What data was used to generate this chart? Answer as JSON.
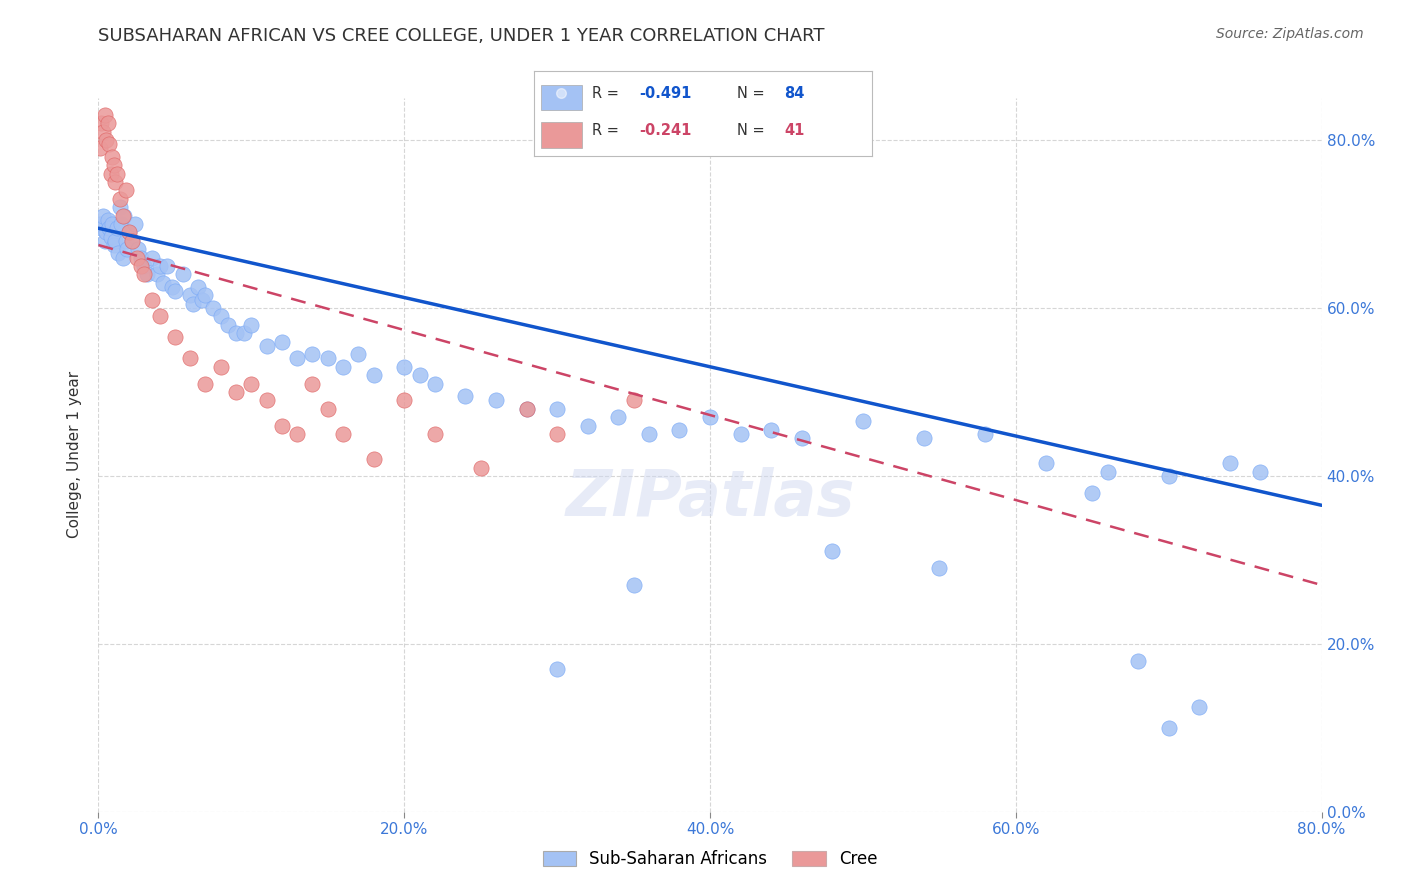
{
  "title": "SUBSAHARAN AFRICAN VS CREE COLLEGE, UNDER 1 YEAR CORRELATION CHART",
  "source": "Source: ZipAtlas.com",
  "ylabel_label": "College, Under 1 year",
  "blue_color": "#a4c2f4",
  "pink_color": "#ea9999",
  "blue_line_color": "#1155cc",
  "pink_line_color": "#cc4466",
  "R_blue": -0.491,
  "N_blue": 84,
  "R_pink": -0.241,
  "N_pink": 41,
  "xlim": [
    0.0,
    0.8
  ],
  "ylim": [
    0.0,
    0.85
  ],
  "blue_trend_x": [
    0.0,
    0.8
  ],
  "blue_trend_y": [
    0.695,
    0.365
  ],
  "pink_trend_x": [
    0.0,
    0.8
  ],
  "pink_trend_y": [
    0.675,
    0.27
  ],
  "blue_scatter_x": [
    0.001,
    0.002,
    0.003,
    0.004,
    0.005,
    0.006,
    0.007,
    0.008,
    0.009,
    0.01,
    0.011,
    0.012,
    0.013,
    0.014,
    0.015,
    0.016,
    0.017,
    0.018,
    0.019,
    0.02,
    0.022,
    0.024,
    0.026,
    0.028,
    0.03,
    0.032,
    0.035,
    0.038,
    0.04,
    0.042,
    0.045,
    0.048,
    0.05,
    0.055,
    0.06,
    0.062,
    0.065,
    0.068,
    0.07,
    0.075,
    0.08,
    0.085,
    0.09,
    0.095,
    0.1,
    0.11,
    0.12,
    0.13,
    0.14,
    0.15,
    0.16,
    0.17,
    0.18,
    0.2,
    0.21,
    0.22,
    0.24,
    0.26,
    0.28,
    0.3,
    0.32,
    0.34,
    0.36,
    0.38,
    0.4,
    0.42,
    0.44,
    0.46,
    0.5,
    0.54,
    0.58,
    0.62,
    0.66,
    0.7,
    0.74,
    0.76,
    0.65,
    0.7,
    0.72,
    0.68,
    0.55,
    0.48,
    0.35,
    0.3
  ],
  "blue_scatter_y": [
    0.7,
    0.695,
    0.71,
    0.68,
    0.69,
    0.705,
    0.695,
    0.685,
    0.7,
    0.675,
    0.68,
    0.695,
    0.665,
    0.72,
    0.7,
    0.66,
    0.71,
    0.68,
    0.67,
    0.69,
    0.68,
    0.7,
    0.67,
    0.66,
    0.65,
    0.64,
    0.66,
    0.64,
    0.65,
    0.63,
    0.65,
    0.625,
    0.62,
    0.64,
    0.615,
    0.605,
    0.625,
    0.61,
    0.615,
    0.6,
    0.59,
    0.58,
    0.57,
    0.57,
    0.58,
    0.555,
    0.56,
    0.54,
    0.545,
    0.54,
    0.53,
    0.545,
    0.52,
    0.53,
    0.52,
    0.51,
    0.495,
    0.49,
    0.48,
    0.48,
    0.46,
    0.47,
    0.45,
    0.455,
    0.47,
    0.45,
    0.455,
    0.445,
    0.465,
    0.445,
    0.45,
    0.415,
    0.405,
    0.4,
    0.415,
    0.405,
    0.38,
    0.1,
    0.125,
    0.18,
    0.29,
    0.31,
    0.27,
    0.17
  ],
  "pink_scatter_x": [
    0.001,
    0.002,
    0.003,
    0.004,
    0.005,
    0.006,
    0.007,
    0.008,
    0.009,
    0.01,
    0.011,
    0.012,
    0.014,
    0.016,
    0.018,
    0.02,
    0.022,
    0.025,
    0.028,
    0.03,
    0.035,
    0.04,
    0.05,
    0.06,
    0.07,
    0.08,
    0.09,
    0.1,
    0.11,
    0.12,
    0.13,
    0.14,
    0.15,
    0.16,
    0.18,
    0.2,
    0.22,
    0.25,
    0.28,
    0.3,
    0.35
  ],
  "pink_scatter_y": [
    0.79,
    0.82,
    0.81,
    0.83,
    0.8,
    0.82,
    0.795,
    0.76,
    0.78,
    0.77,
    0.75,
    0.76,
    0.73,
    0.71,
    0.74,
    0.69,
    0.68,
    0.66,
    0.65,
    0.64,
    0.61,
    0.59,
    0.565,
    0.54,
    0.51,
    0.53,
    0.5,
    0.51,
    0.49,
    0.46,
    0.45,
    0.51,
    0.48,
    0.45,
    0.42,
    0.49,
    0.45,
    0.41,
    0.48,
    0.45,
    0.49
  ]
}
